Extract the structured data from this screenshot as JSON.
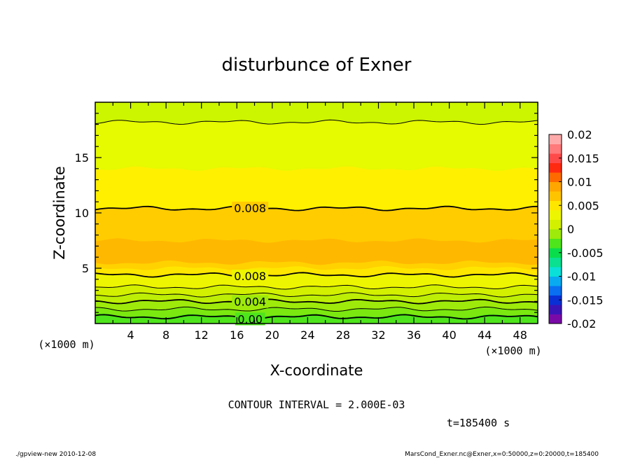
{
  "chart_data": {
    "type": "contour",
    "title": "disturbunce of Exner",
    "xlabel": "X-coordinate",
    "ylabel": "Z-coordinate",
    "x_unit_label": "(×1000 m)",
    "y_unit_label": "(×1000 m)",
    "xlim": [
      0,
      50
    ],
    "ylim": [
      0,
      20
    ],
    "x_ticks": [
      4,
      8,
      12,
      16,
      20,
      24,
      28,
      32,
      36,
      40,
      44,
      48
    ],
    "y_ticks": [
      5,
      10,
      15
    ],
    "contour_interval_text": "CONTOUR INTERVAL = 2.000E-03",
    "time_text": "t=185400 s",
    "colorbar": {
      "ticks": [
        "0.02",
        "0.015",
        "0.01",
        "0.005",
        "0",
        "-0.005",
        "-0.01",
        "-0.015",
        "-0.02"
      ],
      "range": [
        -0.02,
        0.02
      ],
      "colors": [
        "#7a0aa8",
        "#3b14b8",
        "#0a2fd4",
        "#0a6ff0",
        "#0aaaf0",
        "#0ae0d8",
        "#0ae090",
        "#0add4c",
        "#4ee51c",
        "#9eea0a",
        "#d2f000",
        "#eef500",
        "#ffe600",
        "#ffc400",
        "#ffa600",
        "#ff6a00",
        "#ff2a10",
        "#ff4a4a",
        "#ff7a7a",
        "#ffaaaa"
      ]
    },
    "bands": [
      {
        "z_bottom": 0.0,
        "z_top": 0.7,
        "color": "#4ee51c"
      },
      {
        "z_bottom": 0.7,
        "z_top": 1.3,
        "color": "#7be80f"
      },
      {
        "z_bottom": 1.3,
        "z_top": 2.0,
        "color": "#9eea0a"
      },
      {
        "z_bottom": 2.0,
        "z_top": 2.6,
        "color": "#bdee05"
      },
      {
        "z_bottom": 2.6,
        "z_top": 3.3,
        "color": "#d2f000"
      },
      {
        "z_bottom": 3.3,
        "z_top": 4.4,
        "color": "#eef500"
      },
      {
        "z_bottom": 4.4,
        "z_top": 5.0,
        "color": "#ffe600"
      },
      {
        "z_bottom": 5.0,
        "z_top": 5.5,
        "color": "#ffd200"
      },
      {
        "z_bottom": 5.5,
        "z_top": 7.5,
        "color": "#ffb800"
      },
      {
        "z_bottom": 7.5,
        "z_top": 10.4,
        "color": "#ffcc00"
      },
      {
        "z_bottom": 10.4,
        "z_top": 14.0,
        "color": "#fff000"
      },
      {
        "z_bottom": 14.0,
        "z_top": 18.2,
        "color": "#e6fa00"
      },
      {
        "z_bottom": 18.2,
        "z_top": 20.0,
        "color": "#ccf500"
      }
    ],
    "contour_lines": [
      {
        "z": 0.6,
        "label": "0.00",
        "x_label": 17.5
      },
      {
        "z": 1.3,
        "label": "",
        "x_label": null
      },
      {
        "z": 2.0,
        "label": "0.004",
        "x_label": 17.5
      },
      {
        "z": 2.6,
        "label": "",
        "x_label": null
      },
      {
        "z": 3.3,
        "label": "",
        "x_label": null
      },
      {
        "z": 4.4,
        "label": "0.008",
        "x_label": 17.5
      },
      {
        "z": 10.4,
        "label": "0.008",
        "x_label": 17.5
      },
      {
        "z": 18.2,
        "label": "",
        "x_label": null
      }
    ]
  },
  "footer": {
    "left": "./gpview-new   2010-12-08",
    "right": "MarsCond_Exner.nc@Exner,x=0:50000,z=0:20000,t=185400"
  }
}
